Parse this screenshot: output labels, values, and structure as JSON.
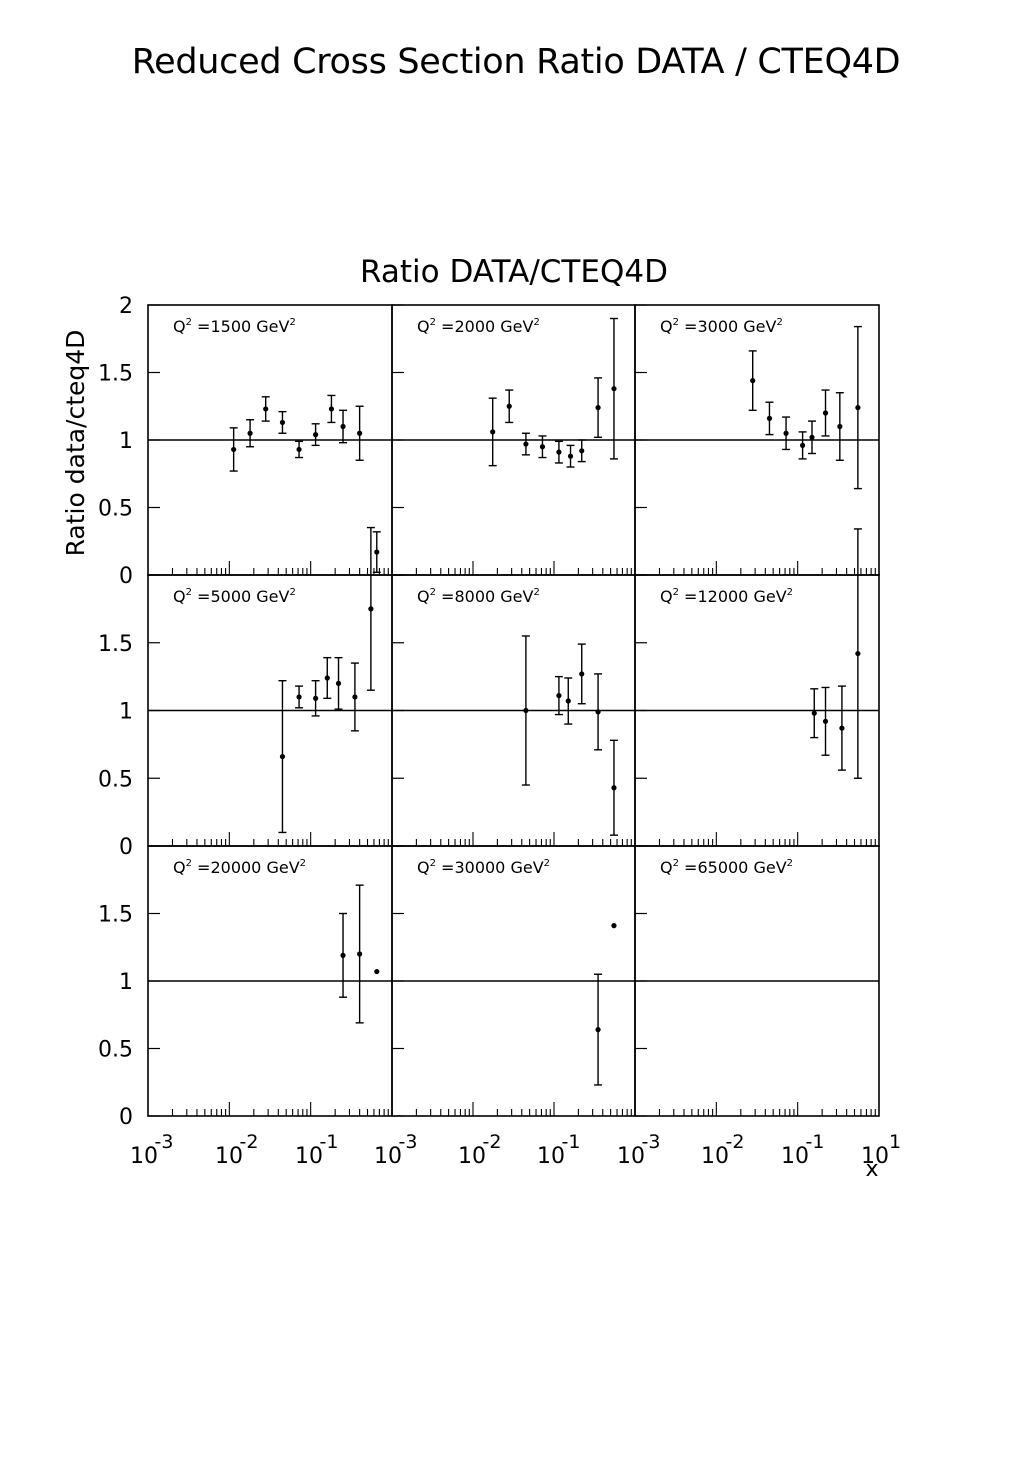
{
  "page_title": "Reduced Cross Section Ratio DATA / CTEQ4D",
  "chart_data": {
    "type": "scatter",
    "title": "Ratio DATA/CTEQ4D",
    "ylabel": "Ratio data/cteq4D",
    "xlabel": "x",
    "xscale": "log",
    "xlim": [
      0.001,
      1
    ],
    "ylim": [
      0,
      2
    ],
    "reference_line": 1,
    "grid": false,
    "y_ticks": [
      "0",
      "0.5",
      "1",
      "1.5",
      "2"
    ],
    "x_tick_exponents": [
      "-3",
      "-2",
      "-1",
      "1"
    ],
    "x_tick_base": "10",
    "panels": [
      {
        "label": "=1500 GeV",
        "points": [
          {
            "x": 0.0113,
            "y": 0.93,
            "err": 0.16
          },
          {
            "x": 0.018,
            "y": 1.05,
            "err": 0.1
          },
          {
            "x": 0.028,
            "y": 1.23,
            "err": 0.09
          },
          {
            "x": 0.045,
            "y": 1.13,
            "err": 0.08
          },
          {
            "x": 0.072,
            "y": 0.93,
            "err": 0.06
          },
          {
            "x": 0.115,
            "y": 1.04,
            "err": 0.08
          },
          {
            "x": 0.18,
            "y": 1.23,
            "err": 0.1
          },
          {
            "x": 0.25,
            "y": 1.1,
            "err": 0.12
          },
          {
            "x": 0.4,
            "y": 1.05,
            "err": 0.2
          },
          {
            "x": 0.65,
            "y": 0.17,
            "err": 0.15
          }
        ]
      },
      {
        "label": "=2000 GeV",
        "points": [
          {
            "x": 0.0175,
            "y": 1.06,
            "err": 0.25
          },
          {
            "x": 0.028,
            "y": 1.25,
            "err": 0.12
          },
          {
            "x": 0.045,
            "y": 0.97,
            "err": 0.08
          },
          {
            "x": 0.072,
            "y": 0.95,
            "err": 0.08
          },
          {
            "x": 0.115,
            "y": 0.91,
            "err": 0.08
          },
          {
            "x": 0.16,
            "y": 0.88,
            "err": 0.08
          },
          {
            "x": 0.22,
            "y": 0.92,
            "err": 0.08
          },
          {
            "x": 0.35,
            "y": 1.24,
            "err": 0.22
          },
          {
            "x": 0.55,
            "y": 1.38,
            "err": 0.52
          }
        ]
      },
      {
        "label": "=3000 GeV",
        "points": [
          {
            "x": 0.028,
            "y": 1.44,
            "err": 0.22
          },
          {
            "x": 0.045,
            "y": 1.16,
            "err": 0.12
          },
          {
            "x": 0.072,
            "y": 1.05,
            "err": 0.12
          },
          {
            "x": 0.115,
            "y": 0.96,
            "err": 0.1
          },
          {
            "x": 0.15,
            "y": 1.02,
            "err": 0.12
          },
          {
            "x": 0.22,
            "y": 1.2,
            "err": 0.17
          },
          {
            "x": 0.33,
            "y": 1.1,
            "err": 0.25
          },
          {
            "x": 0.55,
            "y": 1.24,
            "err": 0.6
          }
        ]
      },
      {
        "label": "=5000 GeV",
        "points": [
          {
            "x": 0.045,
            "y": 0.66,
            "err": 0.56
          },
          {
            "x": 0.072,
            "y": 1.1,
            "err": 0.08
          },
          {
            "x": 0.115,
            "y": 1.09,
            "err": 0.13
          },
          {
            "x": 0.16,
            "y": 1.24,
            "err": 0.15
          },
          {
            "x": 0.22,
            "y": 1.2,
            "err": 0.19
          },
          {
            "x": 0.35,
            "y": 1.1,
            "err": 0.25
          },
          {
            "x": 0.55,
            "y": 1.75,
            "err": 0.6
          }
        ]
      },
      {
        "label": "=8000 GeV",
        "points": [
          {
            "x": 0.045,
            "y": 1.0,
            "err": 0.55
          },
          {
            "x": 0.115,
            "y": 1.11,
            "err": 0.14
          },
          {
            "x": 0.15,
            "y": 1.07,
            "err": 0.17
          },
          {
            "x": 0.22,
            "y": 1.27,
            "err": 0.22
          },
          {
            "x": 0.35,
            "y": 0.99,
            "err": 0.28
          },
          {
            "x": 0.55,
            "y": 0.43,
            "err": 0.35
          }
        ]
      },
      {
        "label": "=12000 GeV",
        "points": [
          {
            "x": 0.16,
            "y": 0.98,
            "err": 0.18
          },
          {
            "x": 0.22,
            "y": 0.92,
            "err": 0.25
          },
          {
            "x": 0.35,
            "y": 0.87,
            "err": 0.31
          },
          {
            "x": 0.55,
            "y": 1.42,
            "err": 0.92
          }
        ]
      },
      {
        "label": "=20000 GeV",
        "points": [
          {
            "x": 0.25,
            "y": 1.19,
            "err": 0.31
          },
          {
            "x": 0.4,
            "y": 1.2,
            "err": 0.51
          },
          {
            "x": 0.65,
            "y": 1.07,
            "err": 0.0
          }
        ]
      },
      {
        "label": "=30000 GeV",
        "points": [
          {
            "x": 0.35,
            "y": 0.64,
            "err": 0.41
          },
          {
            "x": 0.55,
            "y": 1.41,
            "err": 0.0
          }
        ]
      },
      {
        "label": "=65000 GeV",
        "points": []
      }
    ]
  }
}
